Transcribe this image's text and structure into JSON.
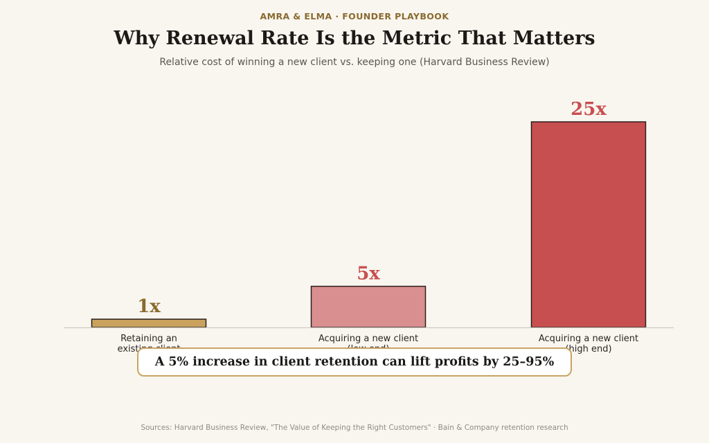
{
  "header": {
    "eyebrow": "AMRA & ELMA  ·  FOUNDER PLAYBOOK",
    "title": "Why Renewal Rate Is the Metric That Matters",
    "subtitle": "Relative cost of winning a new client vs. keeping one (Harvard Business Review)"
  },
  "chart_data": {
    "type": "bar",
    "categories": [
      [
        "Retaining an",
        "existing client"
      ],
      [
        "Acquiring a new client",
        "(low end)"
      ],
      [
        "Acquiring a new client",
        "(high end)"
      ]
    ],
    "values": [
      1,
      5,
      25
    ],
    "data_labels": [
      "1x",
      "5x",
      "25x"
    ],
    "colors": [
      "#c9a25e",
      "#d98f8f",
      "#c84f4f"
    ],
    "label_colors": [
      "#8a6a2e",
      "#c84f4f",
      "#c84f4f"
    ],
    "axis_color": "#cfcac2",
    "ylim": [
      0,
      25
    ],
    "grid": false
  },
  "callout": {
    "text": "A 5% increase in client retention can lift profits by 25–95%"
  },
  "footer": {
    "sources": "Sources: Harvard Business Review, \"The Value of Keeping the Right Customers\" · Bain & Company retention research"
  }
}
